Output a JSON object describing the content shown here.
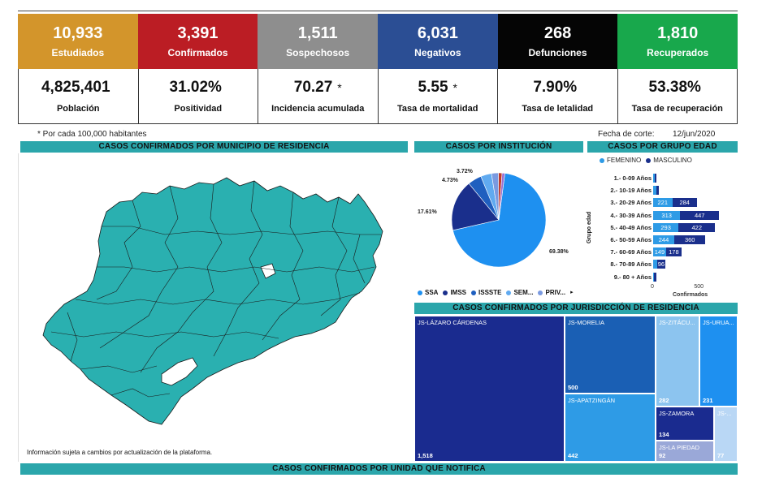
{
  "top_stats": [
    {
      "value": "10,933",
      "label": "Estudiados",
      "color": "#d3952b"
    },
    {
      "value": "3,391",
      "label": "Confirmados",
      "color": "#bb1d24"
    },
    {
      "value": "1,511",
      "label": "Sospechosos",
      "color": "#8e8e8e"
    },
    {
      "value": "6,031",
      "label": "Negativos",
      "color": "#2b4e94"
    },
    {
      "value": "268",
      "label": "Defunciones",
      "color": "#050505"
    },
    {
      "value": "1,810",
      "label": "Recuperados",
      "color": "#18a84c"
    }
  ],
  "bottom_stats": [
    {
      "value": "4,825,401",
      "label": "Población",
      "asterisk": ""
    },
    {
      "value": "31.02%",
      "label": "Positividad",
      "asterisk": ""
    },
    {
      "value": "70.27",
      "label": "Incidencia acumulada",
      "asterisk": "*"
    },
    {
      "value": "5.55",
      "label": "Tasa de mortalidad",
      "asterisk": "*"
    },
    {
      "value": "7.90%",
      "label": "Tasa de letalidad",
      "asterisk": ""
    },
    {
      "value": "53.38%",
      "label": "Tasa de recuperación",
      "asterisk": ""
    }
  ],
  "notes": {
    "per_habitants": "* Por cada 100,000 habitantes",
    "cutoff_label": "Fecha de corte:",
    "cutoff_date": "12/jun/2020"
  },
  "headers": {
    "municipio": "CASOS CONFIRMADOS POR MUNICIPIO DE RESIDENCIA",
    "institucion": "CASOS POR INSTITUCIÓN",
    "edad": "CASOS POR GRUPO EDAD",
    "jurisdiccion": "CASOS CONFIRMADOS POR JURISDICCIÓN DE RESIDENCIA",
    "unidad": "CASOS CONFIRMADOS POR UNIDAD QUE NOTIFICA"
  },
  "map_note": "Información sujeta a cambios por actualización de la plataforma.",
  "colors": {
    "teal": "#2ba6ab",
    "map_fill": "#2ab0b0",
    "femenino": "#2e9be6",
    "masculino": "#1a2f8c"
  },
  "chart_data": [
    {
      "type": "pie",
      "title": "CASOS POR INSTITUCIÓN",
      "slices": [
        {
          "name": "SSA",
          "value": 69.38,
          "label": "69.38%",
          "color": "#1e90f0"
        },
        {
          "name": "IMSS",
          "value": 17.61,
          "label": "17.61%",
          "color": "#1a2f8c"
        },
        {
          "name": "ISSSTE",
          "value": 4.73,
          "label": "4.73%",
          "color": "#1f5fbf"
        },
        {
          "name": "SEM...",
          "value": 3.72,
          "label": "3.72%",
          "color": "#60aaf0"
        },
        {
          "name": "PRIV...",
          "value": 2.4,
          "label": "",
          "color": "#7a9ae0"
        },
        {
          "name": "",
          "value": 1.2,
          "label": "",
          "color": "#c0392b"
        },
        {
          "name": "",
          "value": 0.96,
          "label": "",
          "color": "#9a6fd0"
        }
      ],
      "legend": [
        "SSA",
        "IMSS",
        "ISSSTE",
        "SEM...",
        "PRIV..."
      ]
    },
    {
      "type": "bar",
      "title": "CASOS POR GRUPO EDAD",
      "orientation": "horizontal",
      "stacked": true,
      "ylabel": "Grupo edad",
      "xlabel": "Confirmados",
      "xlim": [
        0,
        900
      ],
      "xticks": [
        "0",
        "500"
      ],
      "categories": [
        "1.- 0-09 Años",
        "2.- 10-19 Años",
        "3.- 20-29 Años",
        "4.- 30-39 Años",
        "5.- 40-49 Años",
        "6.- 50-59 Años",
        "7.- 60-69 Años",
        "8.- 70-89 Años",
        "9.- 80 + Años"
      ],
      "series": [
        {
          "name": "FEMENINO",
          "values": [
            20,
            40,
            221,
            313,
            293,
            244,
            149,
            45,
            12
          ],
          "labels": [
            "",
            "",
            "221",
            "313",
            "293",
            "244",
            "149",
            "",
            ""
          ]
        },
        {
          "name": "MASCULINO",
          "values": [
            15,
            28,
            284,
            447,
            422,
            360,
            178,
            96,
            30
          ],
          "labels": [
            "",
            "",
            "284",
            "447",
            "422",
            "360",
            "178",
            "96",
            ""
          ]
        }
      ]
    },
    {
      "type": "treemap",
      "title": "CASOS CONFIRMADOS POR JURISDICCIÓN DE RESIDENCIA",
      "items": [
        {
          "name": "JS-LÁZARO CÁRDENAS",
          "value": 1518,
          "label": "1,518",
          "color": "#1a2b8f"
        },
        {
          "name": "JS-MORELIA",
          "value": 500,
          "label": "500",
          "color": "#1a5fb4"
        },
        {
          "name": "JS-APATZINGÁN",
          "value": 442,
          "label": "442",
          "color": "#2e9be6"
        },
        {
          "name": "JS-ZITÁCU...",
          "value": 282,
          "label": "282",
          "color": "#8cc4ef"
        },
        {
          "name": "JS-URUA...",
          "value": 231,
          "label": "231",
          "color": "#1e90f0"
        },
        {
          "name": "JS-ZAMORA",
          "value": 134,
          "label": "134",
          "color": "#1a2b8f"
        },
        {
          "name": "JS-LA PIEDAD",
          "value": 92,
          "label": "92",
          "color": "#9aa8d8"
        },
        {
          "name": "JS-...",
          "value": 77,
          "label": "77",
          "color": "#b9d7f5"
        }
      ]
    }
  ]
}
